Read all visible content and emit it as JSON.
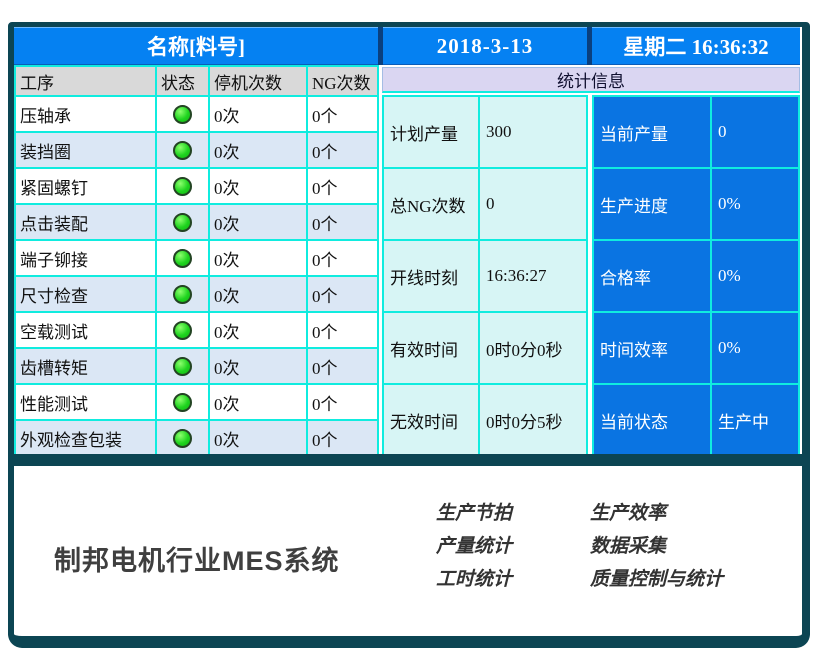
{
  "header": {
    "product_label": "名称[料号]",
    "date": "2018-3-13",
    "weekday_time": "星期二 16:36:32"
  },
  "process_table": {
    "columns": [
      "工序",
      "状态",
      "停机次数",
      "NG次数"
    ],
    "rows": [
      {
        "name": "压轴承",
        "status": "green",
        "stops": "0次",
        "ng": "0个"
      },
      {
        "name": "装挡圈",
        "status": "green",
        "stops": "0次",
        "ng": "0个"
      },
      {
        "name": "紧固螺钉",
        "status": "green",
        "stops": "0次",
        "ng": "0个"
      },
      {
        "name": "点击装配",
        "status": "green",
        "stops": "0次",
        "ng": "0个"
      },
      {
        "name": "端子铆接",
        "status": "green",
        "stops": "0次",
        "ng": "0个"
      },
      {
        "name": "尺寸检查",
        "status": "green",
        "stops": "0次",
        "ng": "0个"
      },
      {
        "name": "空载测试",
        "status": "green",
        "stops": "0次",
        "ng": "0个"
      },
      {
        "name": "齿槽转矩",
        "status": "green",
        "stops": "0次",
        "ng": "0个"
      },
      {
        "name": "性能测试",
        "status": "green",
        "stops": "0次",
        "ng": "0个"
      },
      {
        "name": "外观检查包装",
        "status": "green",
        "stops": "0次",
        "ng": "0个"
      }
    ]
  },
  "stats": {
    "title": "统计信息",
    "rows": [
      {
        "label": "计划产量",
        "value": "300",
        "label2": "当前产量",
        "value2": "0"
      },
      {
        "label": "总NG次数",
        "value": "0",
        "label2": "生产进度",
        "value2": "0%"
      },
      {
        "label": "开线时刻",
        "value": "16:36:27",
        "label2": "合格率",
        "value2": "0%"
      },
      {
        "label": "有效时间",
        "value": "0时0分0秒",
        "label2": "时间效率",
        "value2": "0%"
      },
      {
        "label": "无效时间",
        "value": "0时0分5秒",
        "label2": "当前状态",
        "value2": "生产中"
      }
    ]
  },
  "footer": {
    "brand": "制邦电机行业MES系统",
    "features_col1": [
      "生产节拍",
      "产量统计",
      "工时统计"
    ],
    "features_col2": [
      "生产效率",
      "数据采集",
      "质量控制与统计"
    ]
  },
  "colors": {
    "frame_teal": "#0c4553",
    "header_blue": "#0581f2",
    "panel_blue": "#0a74e2",
    "cyan_border": "#10ecdf",
    "lavender_bar": "#dad6f2",
    "light_cyan_cell": "#d7f5f5",
    "row_alt_blue": "#dbe7f5",
    "header_gray": "#d9d9d9",
    "status_green": "#1fd41f"
  }
}
